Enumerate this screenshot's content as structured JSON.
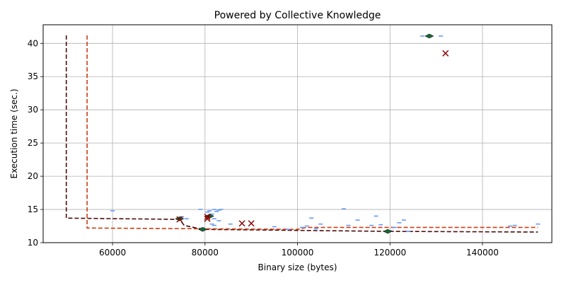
{
  "chart_data": {
    "type": "scatter",
    "title": "Powered by Collective Knowledge",
    "xlabel": "Binary size (bytes)",
    "ylabel": "Execution time (sec.)",
    "xlim": [
      45000,
      155000
    ],
    "ylim": [
      10,
      42.8
    ],
    "xticks": [
      60000,
      80000,
      100000,
      120000,
      140000
    ],
    "xtick_labels": [
      "60000",
      "80000",
      "100000",
      "120000",
      "140000"
    ],
    "yticks": [
      10,
      15,
      20,
      25,
      30,
      35,
      40
    ],
    "ytick_labels": [
      "10",
      "15",
      "20",
      "25",
      "30",
      "35",
      "40"
    ],
    "grid": true,
    "legend": "none",
    "colors": {
      "points": "#6699ff",
      "pareto_dark": "#4d0d0d",
      "pareto_orange": "#cc3d14",
      "highlight_green": "#1a6633",
      "highlight_red": "#8b0000",
      "grid": "#b0b0b0"
    },
    "series": [
      {
        "marker": "dash",
        "color": "#6699ff",
        "points": [
          [
            60000,
            14.8
          ],
          [
            75000,
            13.9
          ],
          [
            76000,
            13.6
          ],
          [
            79000,
            15.0
          ],
          [
            80500,
            14.6
          ],
          [
            81000,
            14.8
          ],
          [
            81500,
            14.3
          ],
          [
            82000,
            15.0
          ],
          [
            82500,
            14.7
          ],
          [
            83000,
            14.9
          ],
          [
            83500,
            15.0
          ],
          [
            81000,
            13.9
          ],
          [
            82000,
            13.6
          ],
          [
            83000,
            13.3
          ],
          [
            85500,
            12.8
          ],
          [
            81500,
            12.8
          ],
          [
            82000,
            12.6
          ],
          [
            79500,
            12.2
          ],
          [
            95000,
            12.4
          ],
          [
            98000,
            12.0
          ],
          [
            101000,
            12.3
          ],
          [
            102000,
            12.5
          ],
          [
            103000,
            13.7
          ],
          [
            104000,
            12.1
          ],
          [
            105000,
            12.8
          ],
          [
            110000,
            15.1
          ],
          [
            111000,
            12.6
          ],
          [
            113000,
            13.4
          ],
          [
            116000,
            12.6
          ],
          [
            117000,
            14.0
          ],
          [
            118000,
            12.7
          ],
          [
            120000,
            11.8
          ],
          [
            121000,
            12.3
          ],
          [
            122000,
            13.0
          ],
          [
            123000,
            13.4
          ],
          [
            124000,
            11.7
          ],
          [
            127000,
            41.1
          ],
          [
            128500,
            41.1
          ],
          [
            131000,
            41.1
          ],
          [
            146000,
            12.5
          ],
          [
            147000,
            12.6
          ],
          [
            152000,
            12.8
          ]
        ]
      },
      {
        "marker": "diamond",
        "color": "#1a6633",
        "points": [
          [
            74500,
            13.6
          ],
          [
            81000,
            14.0
          ],
          [
            79500,
            12.0
          ],
          [
            128500,
            41.1
          ],
          [
            119500,
            11.7
          ]
        ]
      },
      {
        "marker": "x",
        "color": "#8b0000",
        "points": [
          [
            74500,
            13.5
          ],
          [
            80500,
            13.6
          ],
          [
            88000,
            12.9
          ],
          [
            90000,
            12.9
          ],
          [
            132000,
            38.5
          ],
          [
            80500,
            13.9
          ]
        ]
      },
      {
        "marker": "line-dashed",
        "color": "#4d0d0d",
        "points": [
          [
            50000,
            41.2
          ],
          [
            50000,
            13.7
          ],
          [
            74500,
            13.5
          ],
          [
            75500,
            12.6
          ],
          [
            79500,
            12.0
          ],
          [
            119500,
            11.7
          ],
          [
            152000,
            11.6
          ]
        ]
      },
      {
        "marker": "line-dashed",
        "color": "#cc3d14",
        "points": [
          [
            54500,
            41.2
          ],
          [
            54500,
            12.2
          ],
          [
            100000,
            12.0
          ],
          [
            102000,
            12.3
          ],
          [
            152000,
            12.3
          ]
        ]
      }
    ]
  }
}
